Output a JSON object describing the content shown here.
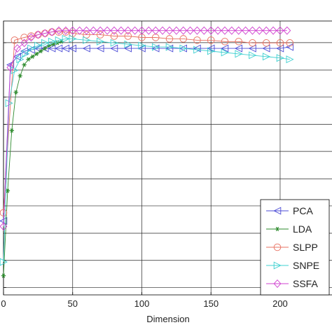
{
  "chart_data": {
    "type": "line",
    "title": "",
    "xlabel": "Dimension",
    "ylabel": "",
    "xlim": [
      0,
      238
    ],
    "ylim": [
      0,
      1
    ],
    "x_ticks": [
      0,
      50,
      100,
      150,
      200
    ],
    "x_tick_labels": [
      "0",
      "50",
      "100",
      "150",
      "200"
    ],
    "y_ticks": [
      0.027,
      0.126,
      0.225,
      0.325,
      0.424,
      0.524,
      0.623,
      0.722,
      0.821,
      0.921
    ],
    "grid": true,
    "legend_position": "bottom-right",
    "series": [
      {
        "name": "PCA",
        "color": "#4b4bd6",
        "marker": "triangle-left",
        "x": [
          0,
          5,
          10,
          15,
          20,
          25,
          30,
          35,
          40,
          45,
          50,
          60,
          70,
          80,
          90,
          100,
          110,
          120,
          130,
          140,
          150,
          160,
          170,
          180,
          190,
          200,
          207
        ],
        "y": [
          0.27,
          0.84,
          0.87,
          0.89,
          0.895,
          0.9,
          0.9,
          0.9,
          0.9,
          0.9,
          0.9,
          0.9,
          0.9,
          0.9,
          0.9,
          0.9,
          0.9,
          0.9,
          0.9,
          0.9,
          0.9,
          0.9,
          0.9,
          0.9,
          0.9,
          0.9,
          0.905
        ]
      },
      {
        "name": "LDA",
        "color": "#2e8b2e",
        "marker": "star",
        "x": [
          0,
          3,
          6,
          9,
          12,
          15,
          18,
          21,
          24,
          27,
          30,
          33,
          36,
          39,
          42
        ],
        "y": [
          0.07,
          0.38,
          0.6,
          0.74,
          0.8,
          0.84,
          0.86,
          0.87,
          0.88,
          0.89,
          0.9,
          0.91,
          0.915,
          0.92,
          0.925
        ]
      },
      {
        "name": "SLPP",
        "color": "#e87060",
        "marker": "circle",
        "x": [
          0,
          8,
          15,
          20,
          25,
          30,
          35,
          40,
          45,
          50,
          60,
          70,
          80,
          90,
          100,
          110,
          120,
          130,
          140,
          150,
          160,
          170,
          180,
          190,
          200,
          207
        ],
        "y": [
          0.3,
          0.93,
          0.94,
          0.945,
          0.95,
          0.955,
          0.96,
          0.96,
          0.96,
          0.955,
          0.95,
          0.95,
          0.945,
          0.945,
          0.94,
          0.94,
          0.935,
          0.935,
          0.93,
          0.93,
          0.925,
          0.925,
          0.92,
          0.92,
          0.92,
          0.92
        ]
      },
      {
        "name": "SNPE",
        "color": "#3fd0d0",
        "marker": "triangle-right",
        "x": [
          0,
          4,
          8,
          12,
          16,
          20,
          25,
          30,
          35,
          40,
          45,
          50,
          60,
          70,
          80,
          90,
          100,
          110,
          120,
          130,
          140,
          150,
          160,
          170,
          180,
          190,
          200,
          207
        ],
        "y": [
          0.12,
          0.7,
          0.82,
          0.86,
          0.88,
          0.9,
          0.91,
          0.92,
          0.925,
          0.93,
          0.935,
          0.935,
          0.93,
          0.925,
          0.92,
          0.915,
          0.91,
          0.905,
          0.905,
          0.9,
          0.895,
          0.89,
          0.885,
          0.88,
          0.875,
          0.87,
          0.865,
          0.86
        ]
      },
      {
        "name": "SSFA",
        "color": "#d040d0",
        "marker": "diamond",
        "x": [
          0,
          5,
          10,
          15,
          20,
          25,
          30,
          35,
          40,
          45,
          50,
          55,
          60,
          65,
          70,
          75,
          80,
          85,
          90,
          95,
          100,
          105,
          110,
          115,
          120,
          125,
          130,
          135,
          140,
          145,
          150,
          155,
          160,
          165,
          170,
          175,
          180,
          185,
          190,
          195,
          200,
          205
        ],
        "y": [
          0.25,
          0.83,
          0.9,
          0.92,
          0.94,
          0.95,
          0.955,
          0.96,
          0.965,
          0.965,
          0.965,
          0.965,
          0.965,
          0.965,
          0.965,
          0.965,
          0.965,
          0.965,
          0.965,
          0.965,
          0.965,
          0.965,
          0.965,
          0.965,
          0.965,
          0.965,
          0.965,
          0.965,
          0.965,
          0.965,
          0.965,
          0.965,
          0.965,
          0.965,
          0.965,
          0.965,
          0.965,
          0.965,
          0.965,
          0.965,
          0.965,
          0.965
        ]
      }
    ]
  }
}
